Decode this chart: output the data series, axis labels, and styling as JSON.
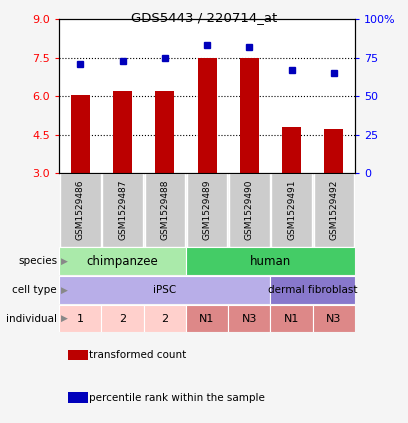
{
  "title": "GDS5443 / 220714_at",
  "samples": [
    "GSM1529486",
    "GSM1529487",
    "GSM1529488",
    "GSM1529489",
    "GSM1529490",
    "GSM1529491",
    "GSM1529492"
  ],
  "bar_values": [
    6.05,
    6.2,
    6.2,
    7.5,
    7.47,
    4.82,
    4.72
  ],
  "dot_values": [
    71,
    73,
    75,
    83,
    82,
    67,
    65
  ],
  "ylim_left": [
    3,
    9
  ],
  "ylim_right": [
    0,
    100
  ],
  "yticks_left": [
    3,
    4.5,
    6,
    7.5,
    9
  ],
  "yticks_right": [
    0,
    25,
    50,
    75,
    100
  ],
  "bar_color": "#bb0000",
  "dot_color": "#0000bb",
  "bar_bottom": 3,
  "dotted_lines": [
    4.5,
    6.0,
    7.5
  ],
  "species": [
    {
      "label": "chimpanzee",
      "start": 0,
      "end": 3,
      "color": "#aaeaaa"
    },
    {
      "label": "human",
      "start": 3,
      "end": 7,
      "color": "#44cc66"
    }
  ],
  "cell_type": [
    {
      "label": "iPSC",
      "start": 0,
      "end": 5,
      "color": "#b8aee8"
    },
    {
      "label": "dermal fibroblast",
      "start": 5,
      "end": 7,
      "color": "#8878cc"
    }
  ],
  "individual": [
    {
      "label": "1",
      "start": 0,
      "end": 1,
      "color": "#ffd0cc"
    },
    {
      "label": "2",
      "start": 1,
      "end": 2,
      "color": "#ffd0cc"
    },
    {
      "label": "2",
      "start": 2,
      "end": 3,
      "color": "#ffd0cc"
    },
    {
      "label": "N1",
      "start": 3,
      "end": 4,
      "color": "#dd8888"
    },
    {
      "label": "N3",
      "start": 4,
      "end": 5,
      "color": "#dd8888"
    },
    {
      "label": "N1",
      "start": 5,
      "end": 6,
      "color": "#dd8888"
    },
    {
      "label": "N3",
      "start": 6,
      "end": 7,
      "color": "#dd8888"
    }
  ],
  "row_labels": [
    "species",
    "cell type",
    "individual"
  ],
  "legend_items": [
    {
      "label": "transformed count",
      "color": "#bb0000"
    },
    {
      "label": "percentile rank within the sample",
      "color": "#0000bb"
    }
  ],
  "sample_bg": "#cccccc",
  "plot_bg": "#ffffff"
}
